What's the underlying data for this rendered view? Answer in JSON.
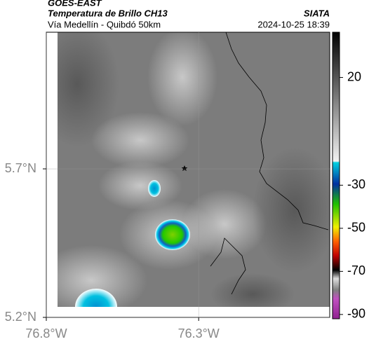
{
  "header": {
    "title": "GOES-EAST",
    "subtitle": "Temperatura de Brillo CH13",
    "location": "Vía Medellín - Quibdó 50km",
    "source": "SIATA",
    "datetime": "2024-10-25 18:39"
  },
  "map": {
    "xlim": [
      -76.8,
      -75.87
    ],
    "ylim": [
      5.2,
      6.16
    ],
    "xticks": [
      {
        "value": -76.8,
        "label": "76.8°W"
      },
      {
        "value": -76.3,
        "label": "76.3°W"
      }
    ],
    "yticks": [
      {
        "value": 5.2,
        "label": "5.2°N"
      },
      {
        "value": 5.7,
        "label": "5.7°N"
      }
    ],
    "grid": true
  },
  "colorbar": {
    "clim": [
      -92,
      41
    ],
    "ticks": [
      20,
      -30,
      -50,
      -70,
      -90
    ]
  }
}
